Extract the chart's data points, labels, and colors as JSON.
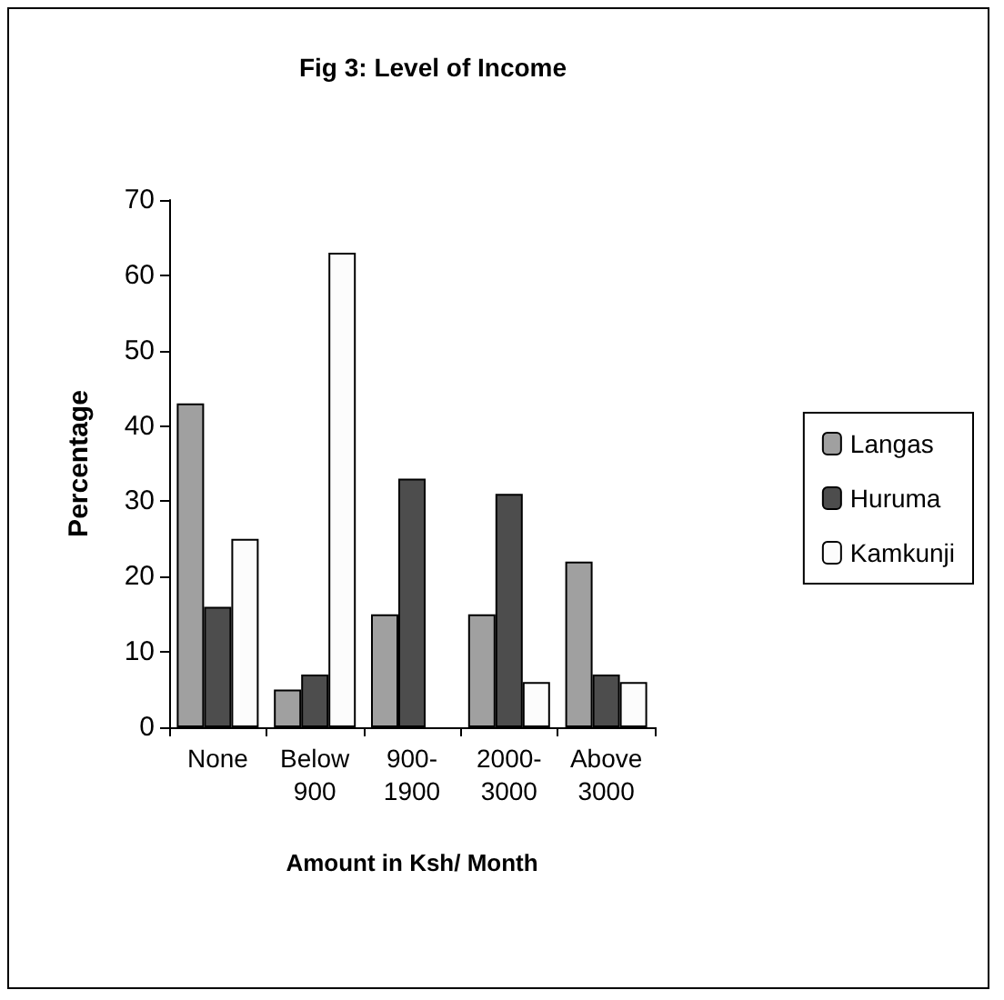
{
  "chart_data": {
    "type": "bar",
    "title": "Fig 3: Level of Income",
    "xlabel": "Amount in Ksh/ Month",
    "ylabel": "Percentage",
    "categories": [
      "None",
      "Below\n900",
      "900-\n1900",
      "2000-\n3000",
      "Above\n3000"
    ],
    "series": [
      {
        "name": "Langas",
        "color": "#a0a0a0",
        "values": [
          43,
          5,
          15,
          15,
          22
        ]
      },
      {
        "name": "Huruma",
        "color": "#4d4d4d",
        "values": [
          16,
          7,
          33,
          31,
          7
        ]
      },
      {
        "name": "Kamkunji",
        "color": "#fcfcfc",
        "values": [
          25,
          63,
          null,
          6,
          6
        ]
      }
    ],
    "ylim": [
      0,
      70
    ],
    "yticks": [
      0,
      10,
      20,
      30,
      40,
      50,
      60,
      70
    ],
    "grid": false,
    "legend": "right"
  }
}
